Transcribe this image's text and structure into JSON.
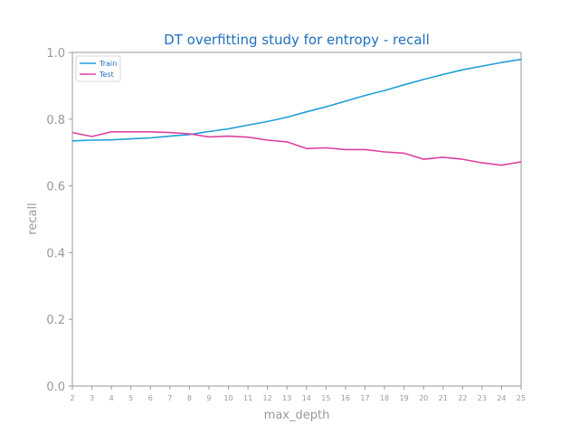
{
  "chart_data": {
    "type": "line",
    "title": "DT overfitting study for entropy - recall",
    "xlabel": "max_depth",
    "ylabel": "recall",
    "x": [
      2,
      3,
      4,
      5,
      6,
      7,
      8,
      9,
      10,
      11,
      12,
      13,
      14,
      15,
      16,
      17,
      18,
      19,
      20,
      21,
      22,
      23,
      24,
      25
    ],
    "xlim": [
      2,
      25
    ],
    "ylim": [
      0.0,
      1.0
    ],
    "yticks": [
      "0.0",
      "0.2",
      "0.4",
      "0.6",
      "0.8",
      "1.0"
    ],
    "xticks": [
      "2",
      "3",
      "4",
      "5",
      "6",
      "7",
      "8",
      "9",
      "10",
      "11",
      "12",
      "13",
      "14",
      "15",
      "16",
      "17",
      "18",
      "19",
      "20",
      "21",
      "22",
      "23",
      "24",
      "25"
    ],
    "legend_position": "top-left",
    "grid": false,
    "series": [
      {
        "name": "Train",
        "color": "#1f9fd8",
        "values": [
          0.735,
          0.737,
          0.738,
          0.741,
          0.744,
          0.749,
          0.754,
          0.763,
          0.771,
          0.782,
          0.793,
          0.806,
          0.822,
          0.837,
          0.854,
          0.871,
          0.886,
          0.903,
          0.919,
          0.934,
          0.948,
          0.959,
          0.97,
          0.979
        ]
      },
      {
        "name": "Test",
        "color": "#e0409f",
        "values": [
          0.76,
          0.748,
          0.762,
          0.762,
          0.762,
          0.76,
          0.756,
          0.747,
          0.749,
          0.746,
          0.737,
          0.732,
          0.712,
          0.714,
          0.709,
          0.709,
          0.702,
          0.698,
          0.68,
          0.686,
          0.68,
          0.669,
          0.662,
          0.672
        ]
      }
    ]
  }
}
